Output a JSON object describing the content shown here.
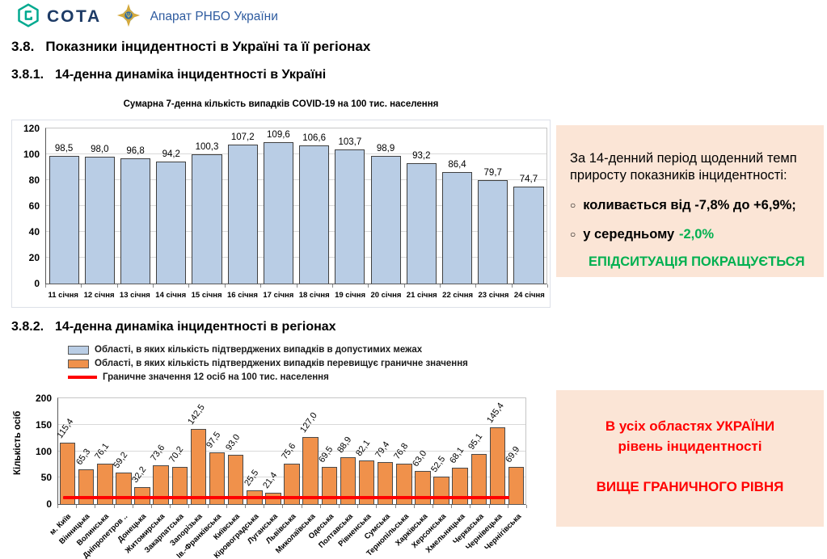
{
  "header": {
    "logo_text": "СОТА",
    "org_name": "Апарат РНБО України",
    "colors": {
      "sota_teal": "#00A98F",
      "sota_navy": "#1D3B66",
      "org_blue": "#2E5B9F"
    }
  },
  "headings": {
    "s1_num": "3.8.",
    "s1_title": "Показники інцидентності в Україні та її регіонах",
    "s2_num": "3.8.1.",
    "s2_title": "14-денна динаміка інцидентності в Україні",
    "s3_num": "3.8.2.",
    "s3_title": "14-денна динаміка інцидентності в регіонах"
  },
  "chart_data": [
    {
      "type": "bar",
      "title": "Сумарна 7-денна кількість випадків  COVID-19 на 100 тис. населення",
      "categories": [
        "11 січня",
        "12 січня",
        "13 січня",
        "14 січня",
        "15 січня",
        "16 січня",
        "17 січня",
        "18 січня",
        "19 січня",
        "20 січня",
        "21 січня",
        "22 січня",
        "23 січня",
        "24 січня"
      ],
      "values": [
        98.5,
        98.0,
        96.8,
        94.2,
        100.3,
        107.2,
        109.6,
        106.6,
        103.7,
        98.9,
        93.2,
        86.4,
        79.7,
        74.7
      ],
      "labels": [
        "98,5",
        "98,0",
        "96,8",
        "94,2",
        "100,3",
        "107,2",
        "109,6",
        "106,6",
        "103,7",
        "98,9",
        "93,2",
        "86,4",
        "79,7",
        "74,7"
      ],
      "xlabel": "",
      "ylabel": "",
      "ylim": [
        0,
        120
      ],
      "yticks": [
        0,
        20,
        40,
        60,
        80,
        100,
        120
      ],
      "grid": true,
      "bar_fill": "#B9CDE5",
      "bar_border": "#404040"
    },
    {
      "type": "bar",
      "title": "",
      "categories": [
        "м. Київ",
        "Вінницька",
        "Волинська",
        "Дніпропетров ..",
        "Донецька",
        "Житомирська",
        "Закарпатська",
        "Запорізька",
        "Ів.-Франківська",
        "Київська",
        "Кіровоградська",
        "Луганська",
        "Львівська",
        "Миколаївська",
        "Одеська",
        "Полтавська",
        "Рівненська",
        "Сумська",
        "Тернопільська",
        "Харківська",
        "Херсонська",
        "Хмельницька",
        "Черкаська",
        "Чернівецька",
        "Чернігівська"
      ],
      "values": [
        115.4,
        65.3,
        76.1,
        59.2,
        32.2,
        73.6,
        70.2,
        142.5,
        97.5,
        93.0,
        25.5,
        21.4,
        75.6,
        127.0,
        69.5,
        88.9,
        82.1,
        79.4,
        76.8,
        63.0,
        52.5,
        68.1,
        95.1,
        145.4,
        69.9
      ],
      "labels": [
        "115,4",
        "65,3",
        "76,1",
        "59,2",
        "32,2",
        "73,6",
        "70,2",
        "142,5",
        "97,5",
        "93,0",
        "25,5",
        "21,4",
        "75,6",
        "127,0",
        "69,5",
        "88,9",
        "82,1",
        "79,4",
        "76,8",
        "63,0",
        "52,5",
        "68,1",
        "95,1",
        "145,4",
        "69,9"
      ],
      "xlabel": "",
      "ylabel": "Кількість осіб",
      "ylim": [
        0,
        200
      ],
      "yticks": [
        0,
        50,
        100,
        150,
        200
      ],
      "grid": true,
      "bar_fill": "#F0914B",
      "bar_border": "#4a4a4a",
      "threshold": {
        "value": 12,
        "color": "#FF0000",
        "label": "Граничне значення 12 осіб на 100 тис. населення"
      },
      "legend": [
        {
          "type": "box",
          "color": "#B9CDE5",
          "label": "Області, в яких кількість підтверджених випадків в допустимих межах"
        },
        {
          "type": "box",
          "color": "#F0914B",
          "label": "Області, в яких кількість підтверджених випадків перевищує граничне значення"
        },
        {
          "type": "line",
          "color": "#FF0000",
          "label": "Граничне значення 12 осіб на 100 тис. населення"
        }
      ],
      "legend_position": "top-left"
    }
  ],
  "callout_daily": {
    "bg": "#FBE5D6",
    "intro": "За 14-денний період щоденний темп приросту показників інцидентності:",
    "bullet_symbol": "○",
    "bullet1": "коливається від -7,8% до +6,9%;",
    "bullet2_text": "у середньому",
    "bullet2_value": "-2,0%",
    "conclusion": "ЕПІДСИТУАЦІЯ ПОКРАЩУЄТЬСЯ",
    "accent_green": "#00B050"
  },
  "callout_regions": {
    "bg": "#FBE5D6",
    "line1": "В усіх областях УКРАЇНИ",
    "line2": "рівень інцидентності",
    "line3": "ВИЩЕ ГРАНИЧНОГО РІВНЯ",
    "accent_red": "#FF0000"
  }
}
